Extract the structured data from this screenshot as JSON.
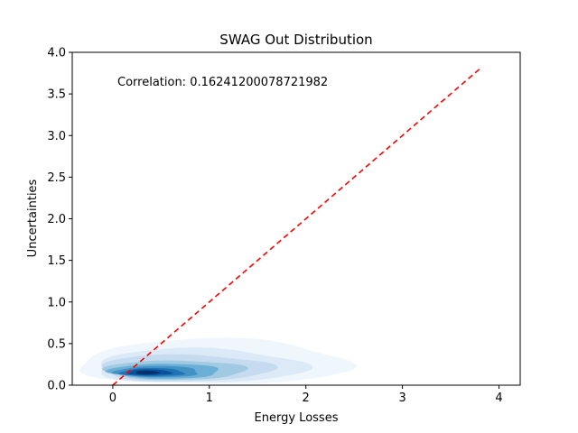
{
  "chart_data": {
    "type": "kde_density",
    "title": "SWAG Out Distribution",
    "xlabel": "Energy Losses",
    "ylabel": "Uncertainties",
    "xlim": [
      -0.42,
      4.22
    ],
    "ylim": [
      0.0,
      4.0
    ],
    "xticks": [
      0,
      1,
      2,
      3,
      4
    ],
    "yticks": [
      0.0,
      0.5,
      1.0,
      1.5,
      2.0,
      2.5,
      3.0,
      3.5,
      4.0
    ],
    "annotation": "Correlation: 0.16241200078721982",
    "grid": false,
    "colormap": "Blues",
    "density_levels": [
      {
        "color": "#eff6fc",
        "center_x": 1.0,
        "center_y": 0.25,
        "rx": 1.35,
        "ry": 0.3
      },
      {
        "color": "#dbeaf6",
        "center_x": 0.85,
        "center_y": 0.21,
        "rx": 1.05,
        "ry": 0.23
      },
      {
        "color": "#c6dbef",
        "center_x": 0.72,
        "center_y": 0.19,
        "rx": 0.85,
        "ry": 0.18
      },
      {
        "color": "#a0cae1",
        "center_x": 0.62,
        "center_y": 0.17,
        "rx": 0.7,
        "ry": 0.13
      },
      {
        "color": "#6baed6",
        "center_x": 0.52,
        "center_y": 0.16,
        "rx": 0.55,
        "ry": 0.1
      },
      {
        "color": "#4292c6",
        "center_x": 0.45,
        "center_y": 0.155,
        "rx": 0.42,
        "ry": 0.075
      },
      {
        "color": "#2171b5",
        "center_x": 0.4,
        "center_y": 0.15,
        "rx": 0.32,
        "ry": 0.055
      },
      {
        "color": "#08519c",
        "center_x": 0.37,
        "center_y": 0.15,
        "rx": 0.22,
        "ry": 0.04
      },
      {
        "color": "#08306b",
        "center_x": 0.35,
        "center_y": 0.15,
        "rx": 0.12,
        "ry": 0.025
      }
    ],
    "reference_line": {
      "x": [
        0.0,
        3.8
      ],
      "y": [
        0.0,
        3.8
      ],
      "color": "#ff0000",
      "style": "dashed"
    }
  }
}
